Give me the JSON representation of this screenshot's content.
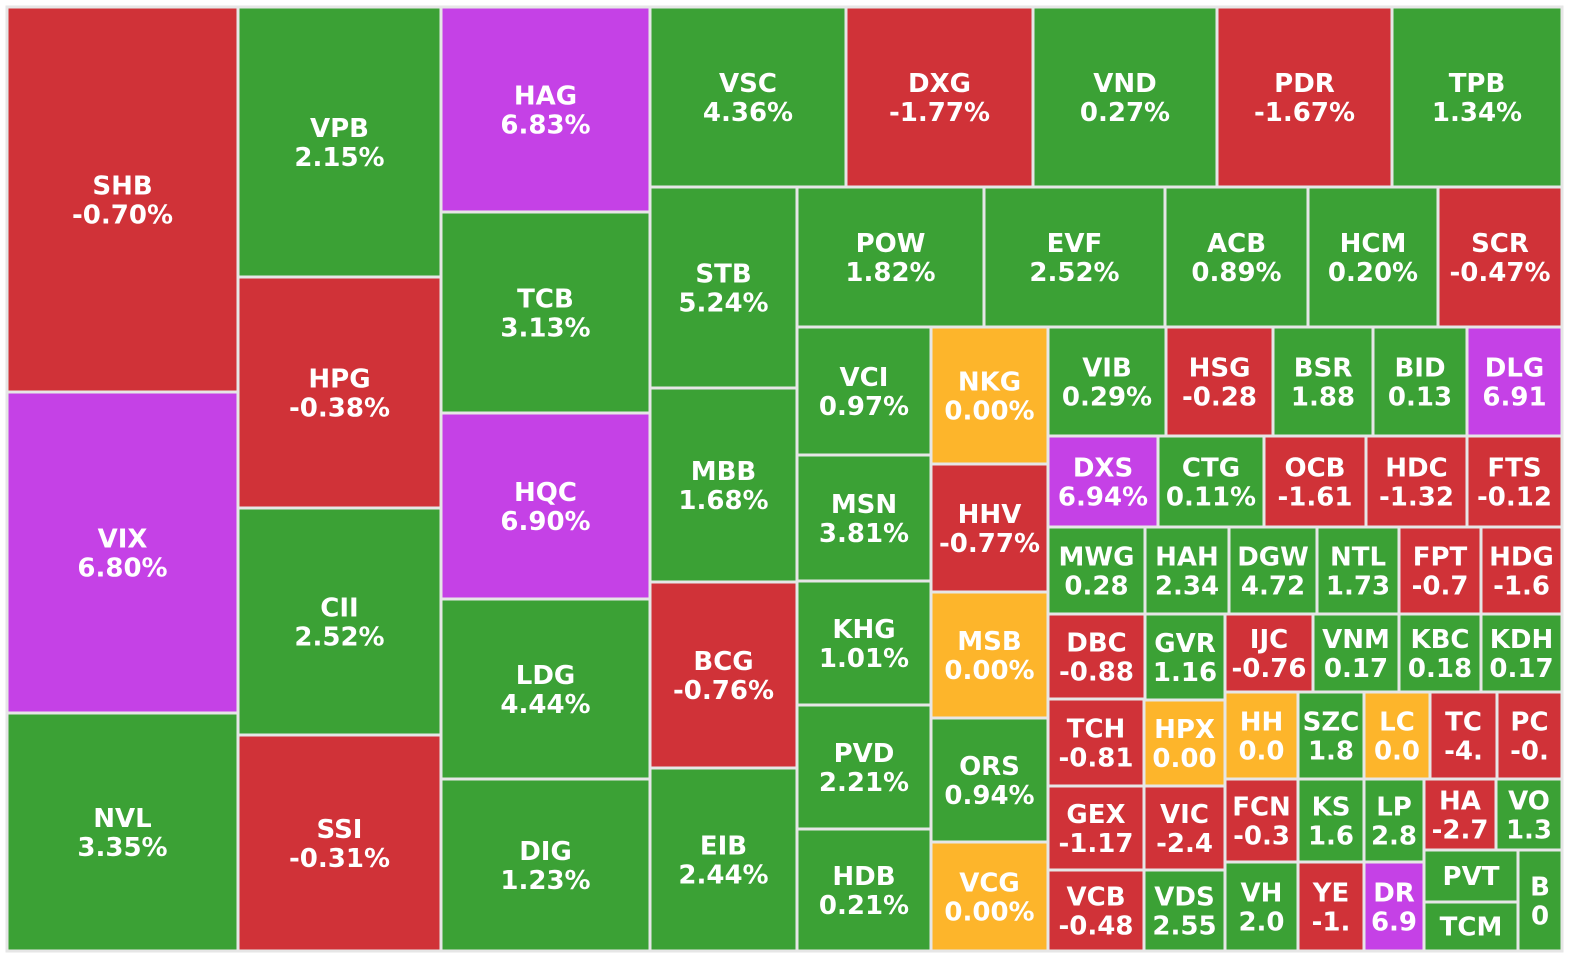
{
  "colors": {
    "up": "#3ba135",
    "down": "#d03238",
    "ceiling": "#c541e6",
    "reference": "#fdb52b",
    "border": "#e6e6e6",
    "text": "#ffffff"
  },
  "chart_data": {
    "type": "treemap",
    "title": "",
    "cells": [
      {
        "ticker": "SHB",
        "change": "-0.70%",
        "status": "down"
      },
      {
        "ticker": "VIX",
        "change": "6.80%",
        "status": "ceiling"
      },
      {
        "ticker": "NVL",
        "change": "3.35%",
        "status": "up"
      },
      {
        "ticker": "VPB",
        "change": "2.15%",
        "status": "up"
      },
      {
        "ticker": "HPG",
        "change": "-0.38%",
        "status": "down"
      },
      {
        "ticker": "CII",
        "change": "2.52%",
        "status": "up"
      },
      {
        "ticker": "SSI",
        "change": "-0.31%",
        "status": "down"
      },
      {
        "ticker": "HAG",
        "change": "6.83%",
        "status": "ceiling"
      },
      {
        "ticker": "TCB",
        "change": "3.13%",
        "status": "up"
      },
      {
        "ticker": "HQC",
        "change": "6.90%",
        "status": "ceiling"
      },
      {
        "ticker": "LDG",
        "change": "4.44%",
        "status": "up"
      },
      {
        "ticker": "DIG",
        "change": "1.23%",
        "status": "up"
      },
      {
        "ticker": "VSC",
        "change": "4.36%",
        "status": "up"
      },
      {
        "ticker": "DXG",
        "change": "-1.77%",
        "status": "down"
      },
      {
        "ticker": "VND",
        "change": "0.27%",
        "status": "up"
      },
      {
        "ticker": "PDR",
        "change": "-1.67%",
        "status": "down"
      },
      {
        "ticker": "TPB",
        "change": "1.34%",
        "status": "up"
      },
      {
        "ticker": "STB",
        "change": "5.24%",
        "status": "up"
      },
      {
        "ticker": "MBB",
        "change": "1.68%",
        "status": "up"
      },
      {
        "ticker": "BCG",
        "change": "-0.76%",
        "status": "down"
      },
      {
        "ticker": "EIB",
        "change": "2.44%",
        "status": "up"
      },
      {
        "ticker": "POW",
        "change": "1.82%",
        "status": "up"
      },
      {
        "ticker": "EVF",
        "change": "2.52%",
        "status": "up"
      },
      {
        "ticker": "ACB",
        "change": "0.89%",
        "status": "up"
      },
      {
        "ticker": "HCM",
        "change": "0.20%",
        "status": "up"
      },
      {
        "ticker": "SCR",
        "change": "-0.47%",
        "status": "down"
      },
      {
        "ticker": "VCI",
        "change": "0.97%",
        "status": "up"
      },
      {
        "ticker": "MSN",
        "change": "3.81%",
        "status": "up"
      },
      {
        "ticker": "KHG",
        "change": "1.01%",
        "status": "up"
      },
      {
        "ticker": "PVD",
        "change": "2.21%",
        "status": "up"
      },
      {
        "ticker": "HDB",
        "change": "0.21%",
        "status": "up"
      },
      {
        "ticker": "NKG",
        "change": "0.00%",
        "status": "reference"
      },
      {
        "ticker": "HHV",
        "change": "-0.77%",
        "status": "down"
      },
      {
        "ticker": "MSB",
        "change": "0.00%",
        "status": "reference"
      },
      {
        "ticker": "ORS",
        "change": "0.94%",
        "status": "up"
      },
      {
        "ticker": "VCG",
        "change": "0.00%",
        "status": "reference"
      },
      {
        "ticker": "VIB",
        "change": "0.29%",
        "status": "up"
      },
      {
        "ticker": "HSG",
        "change": "-0.28",
        "status": "down"
      },
      {
        "ticker": "BSR",
        "change": "1.88",
        "status": "up"
      },
      {
        "ticker": "BID",
        "change": "0.13",
        "status": "up"
      },
      {
        "ticker": "DLG",
        "change": "6.91",
        "status": "ceiling"
      },
      {
        "ticker": "DXS",
        "change": "6.94%",
        "status": "ceiling"
      },
      {
        "ticker": "CTG",
        "change": "0.11%",
        "status": "up"
      },
      {
        "ticker": "OCB",
        "change": "-1.61",
        "status": "down"
      },
      {
        "ticker": "HDC",
        "change": "-1.32",
        "status": "down"
      },
      {
        "ticker": "FTS",
        "change": "-0.12",
        "status": "down"
      },
      {
        "ticker": "MWG",
        "change": "0.28",
        "status": "up"
      },
      {
        "ticker": "HAH",
        "change": "2.34",
        "status": "up"
      },
      {
        "ticker": "DGW",
        "change": "4.72",
        "status": "up"
      },
      {
        "ticker": "NTL",
        "change": "1.73",
        "status": "up"
      },
      {
        "ticker": "FPT",
        "change": "-0.7",
        "status": "down"
      },
      {
        "ticker": "HDG",
        "change": "-1.6",
        "status": "down"
      },
      {
        "ticker": "DBC",
        "change": "-0.88",
        "status": "down"
      },
      {
        "ticker": "GVR",
        "change": "1.16",
        "status": "up"
      },
      {
        "ticker": "IJC",
        "change": "-0.76",
        "status": "down"
      },
      {
        "ticker": "VNM",
        "change": "0.17",
        "status": "up"
      },
      {
        "ticker": "KBC",
        "change": "0.18",
        "status": "up"
      },
      {
        "ticker": "KDH",
        "change": "0.17",
        "status": "up"
      },
      {
        "ticker": "TCH",
        "change": "-0.81",
        "status": "down"
      },
      {
        "ticker": "HPX",
        "change": "0.00",
        "status": "reference"
      },
      {
        "ticker": "HH",
        "change": "0.0",
        "status": "reference"
      },
      {
        "ticker": "SZC",
        "change": "1.8",
        "status": "up"
      },
      {
        "ticker": "LC",
        "change": "0.0",
        "status": "reference"
      },
      {
        "ticker": "TC",
        "change": "-4.",
        "status": "down"
      },
      {
        "ticker": "PC",
        "change": "-0.",
        "status": "down"
      },
      {
        "ticker": "GEX",
        "change": "-1.17",
        "status": "down"
      },
      {
        "ticker": "VIC",
        "change": "-2.4",
        "status": "down"
      },
      {
        "ticker": "FCN",
        "change": "-0.3",
        "status": "down"
      },
      {
        "ticker": "KS",
        "change": "1.6",
        "status": "up"
      },
      {
        "ticker": "LP",
        "change": "2.8",
        "status": "up"
      },
      {
        "ticker": "HA",
        "change": "-2.7",
        "status": "down"
      },
      {
        "ticker": "VO",
        "change": "1.3",
        "status": "up"
      },
      {
        "ticker": "VCB",
        "change": "-0.48",
        "status": "down"
      },
      {
        "ticker": "VDS",
        "change": "2.55",
        "status": "up"
      },
      {
        "ticker": "VH",
        "change": "2.0",
        "status": "up"
      },
      {
        "ticker": "YE",
        "change": "-1.",
        "status": "down"
      },
      {
        "ticker": "DR",
        "change": "6.9",
        "status": "ceiling"
      },
      {
        "ticker": "PVT",
        "change": "",
        "status": "up"
      },
      {
        "ticker": "TCM",
        "change": "",
        "status": "up"
      },
      {
        "ticker": "B",
        "change": "0",
        "status": "up"
      }
    ]
  }
}
